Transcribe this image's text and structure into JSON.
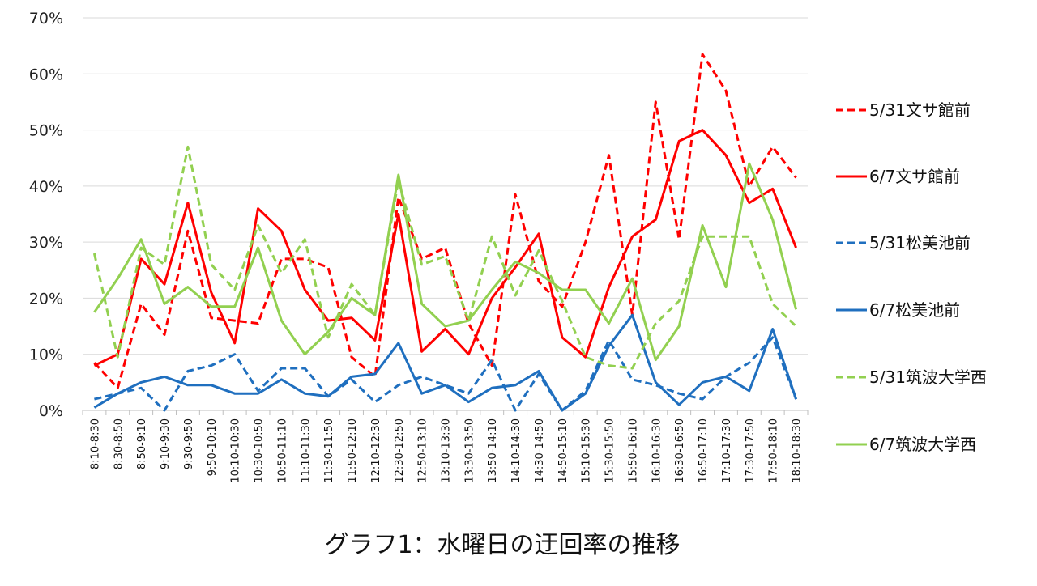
{
  "chart_data": {
    "type": "line",
    "title": "",
    "caption": "グラフ1：水曜日の迂回率の推移",
    "xlabel": "",
    "ylabel": "",
    "ylim": [
      0,
      70
    ],
    "y_ticks": [
      "0%",
      "10%",
      "20%",
      "30%",
      "40%",
      "50%",
      "60%",
      "70%"
    ],
    "grid": true,
    "legend_position": "right",
    "categories": [
      "8:10-8:30",
      "8:30-8:50",
      "8:50-9:10",
      "9:10-9:30",
      "9:30-9:50",
      "9:50-10:10",
      "10:10-10:30",
      "10:30-10:50",
      "10:50-11:10",
      "11:10-11:30",
      "11:30-11:50",
      "11:50-12:10",
      "12:10-12:30",
      "12:30-12:50",
      "12:50-13:10",
      "13:10-13:30",
      "13:30-13:50",
      "13:50-14:10",
      "14:10-14:30",
      "14:30-14:50",
      "14:50-15:10",
      "15:10-15:30",
      "15:30-15:50",
      "15:50-16:10",
      "16:10-16:30",
      "16:30-16:50",
      "16:50-17:10",
      "17:10-17:30",
      "17:30-17:50",
      "17:50-18:10",
      "18:10-18:30"
    ],
    "series": [
      {
        "name": "5/31文サ館前",
        "color": "#ff0000",
        "dash": "dashed",
        "values": [
          8.5,
          4,
          19,
          13.5,
          32,
          16.5,
          16,
          15.5,
          27,
          27,
          25.5,
          9.5,
          6,
          38,
          27,
          29,
          15.5,
          8,
          38.5,
          23,
          18.5,
          30,
          45.5,
          17,
          55,
          30.5,
          63.5,
          57,
          40,
          47,
          41.5
        ]
      },
      {
        "name": "6/7文サ館前",
        "color": "#ff0000",
        "dash": "solid",
        "values": [
          8,
          10,
          27,
          22.5,
          37,
          21,
          12,
          36,
          32,
          21.5,
          16,
          16.5,
          12.5,
          35,
          10.5,
          14.5,
          10,
          20,
          25.5,
          31.5,
          13,
          9.5,
          22,
          31,
          34,
          48,
          50,
          45.5,
          37,
          39.5,
          29
        ]
      },
      {
        "name": "5/31松美池前",
        "color": "#1f6fbf",
        "dash": "dashed",
        "values": [
          2,
          3,
          4,
          0,
          7,
          8,
          10,
          3.5,
          7.5,
          7.5,
          2.5,
          5.5,
          1.5,
          4.5,
          6,
          4.5,
          3,
          9,
          0,
          6.5,
          0,
          3.5,
          12.5,
          5.5,
          4.5,
          3,
          2,
          6,
          8.5,
          13,
          2
        ]
      },
      {
        "name": "6/7松美池前",
        "color": "#1f6fbf",
        "dash": "solid",
        "values": [
          0.5,
          3,
          5,
          6,
          4.5,
          4.5,
          3,
          3,
          5.5,
          3,
          2.5,
          6,
          6.5,
          12,
          3,
          4.5,
          1.5,
          4,
          4.5,
          7,
          0,
          3,
          11.5,
          17,
          5,
          1,
          5,
          6,
          3.5,
          14.5,
          2
        ]
      },
      {
        "name": "5/31筑波大学西",
        "color": "#92d050",
        "dash": "dashed",
        "values": [
          28,
          9.5,
          29,
          26,
          47,
          26,
          21.5,
          33,
          24.5,
          30.5,
          13,
          22.5,
          17,
          41,
          26,
          27.5,
          16,
          31,
          20.5,
          28.5,
          19.5,
          9.5,
          8,
          7.5,
          15.5,
          19.5,
          31,
          31,
          31,
          19,
          15
        ]
      },
      {
        "name": "6/7筑波大学西",
        "color": "#92d050",
        "dash": "solid",
        "values": [
          17.5,
          23.5,
          30.5,
          19,
          22,
          18.5,
          18.5,
          29,
          16,
          10,
          14,
          20,
          17,
          42,
          19,
          15,
          16,
          21.5,
          26.5,
          24.5,
          21.5,
          21.5,
          15.5,
          23.5,
          9,
          15,
          33,
          22,
          44,
          34,
          18
        ]
      }
    ]
  }
}
